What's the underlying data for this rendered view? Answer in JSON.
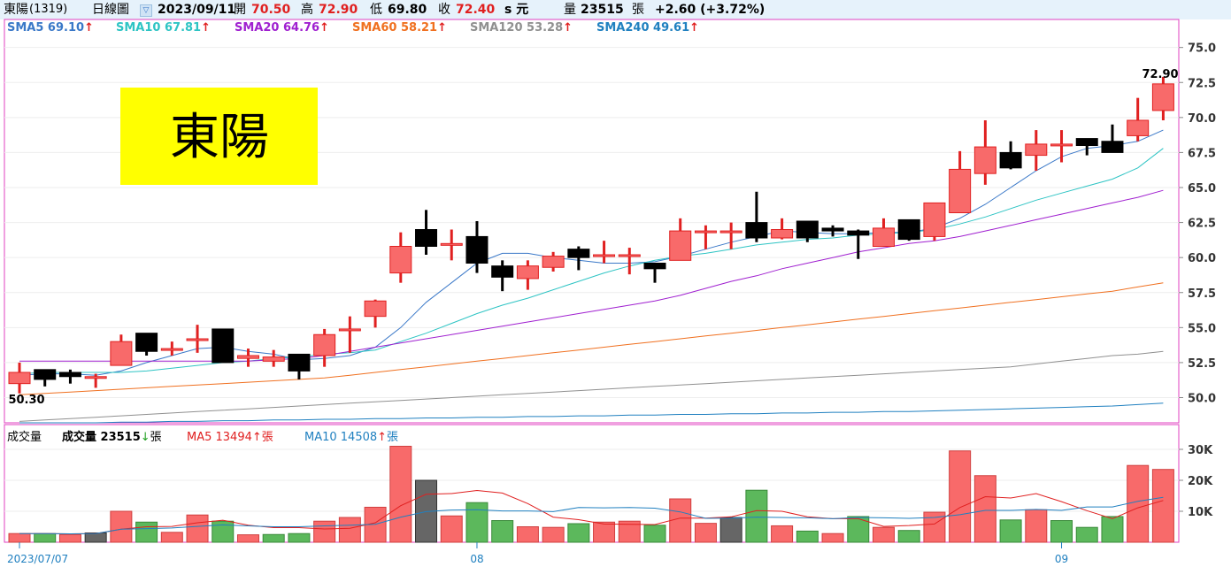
{
  "header": {
    "name": "東陽",
    "code": "(1319)",
    "period": "日線圖",
    "date": "2023/09/11",
    "open_label": "開",
    "open": "70.50",
    "high_label": "高",
    "high": "72.90",
    "low_label": "低",
    "low": "69.80",
    "close_label": "收",
    "close": "72.40",
    "unit": "s 元",
    "volume_label": "量",
    "volume": "23515",
    "volume_unit": "張",
    "change": "+2.60 (+3.72%)"
  },
  "ma_legend": [
    {
      "label": "SMA5 69.10",
      "arrow": "↑",
      "color": "#3a78c8"
    },
    {
      "label": "SMA10 67.81",
      "arrow": "↑",
      "color": "#2ec4c4"
    },
    {
      "label": "SMA20 64.76",
      "arrow": "↑",
      "color": "#a020d0"
    },
    {
      "label": "SMA60 58.21",
      "arrow": "↑",
      "color": "#f07020"
    },
    {
      "label": "SMA120 53.28",
      "arrow": "↑",
      "color": "#909090"
    },
    {
      "label": "SMA240 49.61",
      "arrow": "↑",
      "color": "#2080c0"
    }
  ],
  "volume_legend": {
    "title": "成交量",
    "vol_label": "成交量 23515",
    "vol_arrow": "↓",
    "vol_unit": "張",
    "ma5_label": "MA5 13494",
    "ma5_arrow": "↑",
    "ma5_unit": "張",
    "ma10_label": "MA10 14508",
    "ma10_arrow": "↑",
    "ma10_unit": "張"
  },
  "stock_label": "東陽",
  "colors": {
    "up": "#f86a6a",
    "up_border": "#e02020",
    "down": "#000000",
    "vol_up": "#f86a6a",
    "vol_down": "#5cb85c",
    "vol_neutral": "#666666",
    "highlight_box": "#ffff00",
    "frame": "#e040c0"
  },
  "chart_data": {
    "type": "candlestick",
    "price_axis": {
      "ticks": [
        "75.0",
        "72.5",
        "70.0",
        "67.5",
        "65.0",
        "62.5",
        "60.0",
        "57.5",
        "55.0",
        "52.5",
        "50.0"
      ],
      "ylim": [
        48.2,
        77.0
      ]
    },
    "volume_axis": {
      "ticks": [
        "30K",
        "20K",
        "10K"
      ],
      "ylim": [
        0,
        38000
      ]
    },
    "x_labels": [
      {
        "label": "2023/07/07",
        "index": 0
      },
      {
        "label": "08",
        "index": 18
      },
      {
        "label": "09",
        "index": 41
      }
    ],
    "annotations": {
      "max_label": "72.90",
      "min_label": "50.30"
    },
    "candles": [
      {
        "o": 51.0,
        "h": 52.5,
        "l": 50.3,
        "c": 51.8
      },
      {
        "o": 52.0,
        "h": 52.0,
        "l": 50.8,
        "c": 51.3
      },
      {
        "o": 51.8,
        "h": 52.0,
        "l": 51.0,
        "c": 51.5
      },
      {
        "o": 51.5,
        "h": 51.7,
        "l": 50.7,
        "c": 51.5
      },
      {
        "o": 52.3,
        "h": 54.5,
        "l": 52.3,
        "c": 54.0
      },
      {
        "o": 54.6,
        "h": 54.6,
        "l": 53.0,
        "c": 53.3
      },
      {
        "o": 53.5,
        "h": 54.0,
        "l": 53.0,
        "c": 53.5
      },
      {
        "o": 54.2,
        "h": 55.2,
        "l": 53.2,
        "c": 54.2
      },
      {
        "o": 54.9,
        "h": 54.9,
        "l": 52.5,
        "c": 52.5
      },
      {
        "o": 52.8,
        "h": 53.5,
        "l": 52.2,
        "c": 53.0
      },
      {
        "o": 52.6,
        "h": 53.4,
        "l": 52.2,
        "c": 52.9
      },
      {
        "o": 53.1,
        "h": 53.1,
        "l": 51.3,
        "c": 51.9
      },
      {
        "o": 53.0,
        "h": 54.9,
        "l": 52.2,
        "c": 54.5
      },
      {
        "o": 54.9,
        "h": 55.8,
        "l": 53.2,
        "c": 54.9
      },
      {
        "o": 55.8,
        "h": 57.0,
        "l": 55.0,
        "c": 56.9
      },
      {
        "o": 58.9,
        "h": 61.8,
        "l": 58.2,
        "c": 60.8
      },
      {
        "o": 62.0,
        "h": 63.4,
        "l": 60.2,
        "c": 60.8
      },
      {
        "o": 61.0,
        "h": 62.0,
        "l": 59.8,
        "c": 61.0
      },
      {
        "o": 61.5,
        "h": 62.6,
        "l": 58.9,
        "c": 59.6
      },
      {
        "o": 59.4,
        "h": 59.8,
        "l": 57.6,
        "c": 58.6
      },
      {
        "o": 58.5,
        "h": 59.8,
        "l": 57.7,
        "c": 59.4
      },
      {
        "o": 59.3,
        "h": 60.4,
        "l": 59.0,
        "c": 60.1
      },
      {
        "o": 60.6,
        "h": 60.8,
        "l": 59.1,
        "c": 60.0
      },
      {
        "o": 60.2,
        "h": 61.2,
        "l": 59.6,
        "c": 60.2
      },
      {
        "o": 60.1,
        "h": 60.7,
        "l": 58.8,
        "c": 60.2
      },
      {
        "o": 59.6,
        "h": 59.6,
        "l": 58.2,
        "c": 59.2
      },
      {
        "o": 59.8,
        "h": 62.8,
        "l": 59.8,
        "c": 61.9
      },
      {
        "o": 61.8,
        "h": 62.3,
        "l": 60.6,
        "c": 61.9
      },
      {
        "o": 61.9,
        "h": 62.5,
        "l": 60.6,
        "c": 61.9
      },
      {
        "o": 62.5,
        "h": 64.7,
        "l": 61.1,
        "c": 61.4
      },
      {
        "o": 61.4,
        "h": 62.8,
        "l": 61.3,
        "c": 62.0
      },
      {
        "o": 62.6,
        "h": 62.6,
        "l": 61.1,
        "c": 61.4
      },
      {
        "o": 62.1,
        "h": 62.3,
        "l": 61.5,
        "c": 61.9
      },
      {
        "o": 61.9,
        "h": 62.0,
        "l": 59.9,
        "c": 61.6
      },
      {
        "o": 60.8,
        "h": 62.8,
        "l": 60.8,
        "c": 62.1
      },
      {
        "o": 62.7,
        "h": 62.7,
        "l": 61.2,
        "c": 61.3
      },
      {
        "o": 61.5,
        "h": 63.9,
        "l": 61.2,
        "c": 63.9
      },
      {
        "o": 63.2,
        "h": 67.6,
        "l": 63.2,
        "c": 66.3
      },
      {
        "o": 66.0,
        "h": 69.8,
        "l": 65.2,
        "c": 67.9
      },
      {
        "o": 67.5,
        "h": 68.3,
        "l": 66.3,
        "c": 66.4
      },
      {
        "o": 67.3,
        "h": 69.1,
        "l": 66.2,
        "c": 68.1
      },
      {
        "o": 68.1,
        "h": 69.1,
        "l": 66.8,
        "c": 68.1
      },
      {
        "o": 68.5,
        "h": 68.5,
        "l": 67.3,
        "c": 68.0
      },
      {
        "o": 68.3,
        "h": 69.5,
        "l": 67.5,
        "c": 67.5
      },
      {
        "o": 68.7,
        "h": 71.4,
        "l": 68.3,
        "c": 69.8
      },
      {
        "o": 70.5,
        "h": 72.9,
        "l": 69.8,
        "c": 72.4
      }
    ],
    "volume": [
      {
        "v": 2800,
        "d": "up"
      },
      {
        "v": 2800,
        "d": "down"
      },
      {
        "v": 2500,
        "d": "up"
      },
      {
        "v": 3000,
        "d": "neutral"
      },
      {
        "v": 10000,
        "d": "up"
      },
      {
        "v": 6500,
        "d": "down"
      },
      {
        "v": 3200,
        "d": "up"
      },
      {
        "v": 8800,
        "d": "up"
      },
      {
        "v": 6800,
        "d": "down"
      },
      {
        "v": 2400,
        "d": "up"
      },
      {
        "v": 2500,
        "d": "down"
      },
      {
        "v": 2800,
        "d": "down"
      },
      {
        "v": 6800,
        "d": "up"
      },
      {
        "v": 8000,
        "d": "up"
      },
      {
        "v": 11300,
        "d": "up"
      },
      {
        "v": 31000,
        "d": "up"
      },
      {
        "v": 20000,
        "d": "neutral"
      },
      {
        "v": 8500,
        "d": "up"
      },
      {
        "v": 12800,
        "d": "down"
      },
      {
        "v": 7000,
        "d": "down"
      },
      {
        "v": 5000,
        "d": "up"
      },
      {
        "v": 4800,
        "d": "up"
      },
      {
        "v": 6000,
        "d": "down"
      },
      {
        "v": 6500,
        "d": "up"
      },
      {
        "v": 6800,
        "d": "up"
      },
      {
        "v": 5500,
        "d": "down"
      },
      {
        "v": 14000,
        "d": "up"
      },
      {
        "v": 6100,
        "d": "up"
      },
      {
        "v": 8000,
        "d": "neutral"
      },
      {
        "v": 16800,
        "d": "down"
      },
      {
        "v": 5300,
        "d": "up"
      },
      {
        "v": 3600,
        "d": "down"
      },
      {
        "v": 2800,
        "d": "up"
      },
      {
        "v": 8300,
        "d": "down"
      },
      {
        "v": 4800,
        "d": "up"
      },
      {
        "v": 3800,
        "d": "down"
      },
      {
        "v": 9700,
        "d": "up"
      },
      {
        "v": 29500,
        "d": "up"
      },
      {
        "v": 21500,
        "d": "up"
      },
      {
        "v": 7200,
        "d": "down"
      },
      {
        "v": 10500,
        "d": "up"
      },
      {
        "v": 7000,
        "d": "down"
      },
      {
        "v": 4800,
        "d": "down"
      },
      {
        "v": 8300,
        "d": "down"
      },
      {
        "v": 24800,
        "d": "up"
      },
      {
        "v": 23515,
        "d": "up"
      }
    ],
    "ma_lines": {
      "sma5": [
        51.6,
        51.7,
        51.7,
        51.6,
        51.9,
        52.5,
        53.0,
        53.5,
        53.6,
        53.3,
        53.1,
        52.7,
        52.8,
        53.0,
        53.6,
        55.0,
        56.8,
        58.2,
        59.6,
        60.3,
        60.3,
        60.0,
        59.8,
        59.6,
        59.6,
        59.7,
        60.1,
        60.6,
        61.1,
        61.5,
        61.9,
        61.8,
        61.7,
        61.7,
        61.8,
        61.8,
        62.1,
        62.8,
        63.8,
        65.0,
        66.2,
        67.2,
        67.8,
        68.0,
        68.3,
        69.1
      ],
      "sma10": [
        51.7,
        51.8,
        51.8,
        51.8,
        51.8,
        51.9,
        52.1,
        52.3,
        52.5,
        52.6,
        52.8,
        52.9,
        53.1,
        53.2,
        53.4,
        54.0,
        54.6,
        55.3,
        56.0,
        56.6,
        57.1,
        57.7,
        58.3,
        58.9,
        59.4,
        59.8,
        60.1,
        60.3,
        60.6,
        60.9,
        61.1,
        61.3,
        61.4,
        61.6,
        61.7,
        61.8,
        62.0,
        62.4,
        62.9,
        63.5,
        64.1,
        64.6,
        65.1,
        65.6,
        66.4,
        67.8
      ],
      "sma20": [
        52.6,
        52.6,
        52.6,
        52.6,
        52.6,
        52.6,
        52.6,
        52.6,
        52.6,
        52.6,
        52.7,
        52.8,
        53.0,
        53.3,
        53.6,
        53.9,
        54.2,
        54.5,
        54.8,
        55.1,
        55.4,
        55.7,
        56.0,
        56.3,
        56.6,
        56.9,
        57.3,
        57.8,
        58.3,
        58.7,
        59.2,
        59.6,
        60.0,
        60.4,
        60.7,
        61.0,
        61.2,
        61.5,
        61.9,
        62.3,
        62.7,
        63.1,
        63.5,
        63.9,
        64.3,
        64.8
      ],
      "sma60": [
        50.2,
        50.3,
        50.4,
        50.5,
        50.6,
        50.7,
        50.8,
        50.9,
        51.0,
        51.1,
        51.2,
        51.3,
        51.4,
        51.6,
        51.8,
        52.0,
        52.2,
        52.4,
        52.6,
        52.8,
        53.0,
        53.2,
        53.4,
        53.6,
        53.8,
        54.0,
        54.2,
        54.4,
        54.6,
        54.8,
        55.0,
        55.2,
        55.4,
        55.6,
        55.8,
        56.0,
        56.2,
        56.4,
        56.6,
        56.8,
        57.0,
        57.2,
        57.4,
        57.6,
        57.9,
        58.2
      ],
      "sma120": [
        48.3,
        48.4,
        48.5,
        48.6,
        48.7,
        48.8,
        48.9,
        49.0,
        49.1,
        49.2,
        49.3,
        49.4,
        49.5,
        49.6,
        49.7,
        49.8,
        49.9,
        50.0,
        50.1,
        50.2,
        50.3,
        50.4,
        50.5,
        50.6,
        50.7,
        50.8,
        50.9,
        51.0,
        51.1,
        51.2,
        51.3,
        51.4,
        51.5,
        51.6,
        51.7,
        51.8,
        51.9,
        52.0,
        52.1,
        52.2,
        52.4,
        52.6,
        52.8,
        53.0,
        53.1,
        53.3
      ],
      "sma240": [
        48.2,
        48.2,
        48.2,
        48.2,
        48.25,
        48.25,
        48.3,
        48.3,
        48.35,
        48.35,
        48.4,
        48.4,
        48.45,
        48.45,
        48.5,
        48.5,
        48.55,
        48.55,
        48.6,
        48.6,
        48.65,
        48.65,
        48.7,
        48.7,
        48.75,
        48.75,
        48.8,
        48.8,
        48.85,
        48.85,
        48.9,
        48.9,
        48.95,
        48.95,
        49.0,
        49.0,
        49.05,
        49.1,
        49.15,
        49.2,
        49.25,
        49.3,
        49.35,
        49.4,
        49.5,
        49.6
      ],
      "vol_ma5": [
        2800,
        2800,
        2700,
        2800,
        4200,
        5000,
        5100,
        6300,
        7100,
        5500,
        4700,
        4700,
        4300,
        4500,
        6300,
        11800,
        15500,
        15700,
        16700,
        15900,
        12500,
        8100,
        7300,
        5900,
        5800,
        5700,
        7800,
        7800,
        8200,
        10200,
        10000,
        8200,
        7600,
        7600,
        5100,
        5400,
        5900,
        11200,
        14700,
        14300,
        15700,
        13100,
        10200,
        7600,
        11100,
        13500
      ],
      "vol_ma10": [
        2800,
        2800,
        2700,
        2800,
        4200,
        4400,
        4600,
        5100,
        5600,
        5300,
        5000,
        5000,
        5300,
        5500,
        5800,
        8100,
        9900,
        10400,
        10500,
        10100,
        10100,
        9900,
        11200,
        11100,
        11200,
        11000,
        9800,
        7700,
        7800,
        8100,
        8000,
        7900,
        7600,
        8000,
        7900,
        7700,
        8000,
        8900,
        10300,
        10300,
        10600,
        10300,
        11400,
        11400,
        13200,
        14500
      ]
    }
  }
}
